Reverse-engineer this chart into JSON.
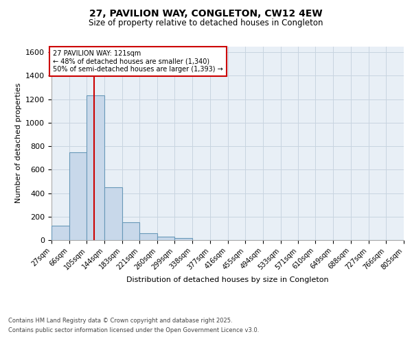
{
  "title_line1": "27, PAVILION WAY, CONGLETON, CW12 4EW",
  "title_line2": "Size of property relative to detached houses in Congleton",
  "xlabel": "Distribution of detached houses by size in Congleton",
  "ylabel": "Number of detached properties",
  "bar_edges": [
    27,
    66,
    105,
    144,
    183,
    221,
    260,
    299,
    338,
    377,
    416,
    455,
    494,
    533,
    571,
    610,
    649,
    688,
    727,
    766,
    805
  ],
  "bar_heights": [
    120,
    750,
    1230,
    450,
    150,
    60,
    30,
    15,
    0,
    0,
    0,
    0,
    0,
    0,
    0,
    0,
    0,
    0,
    0,
    0
  ],
  "bar_color": "#c8d8ea",
  "bar_edgecolor": "#6898b8",
  "ylim": [
    0,
    1650
  ],
  "yticks": [
    0,
    200,
    400,
    600,
    800,
    1000,
    1200,
    1400,
    1600
  ],
  "red_line_x": 121,
  "annotation_title": "27 PAVILION WAY: 121sqm",
  "annotation_line1": "← 48% of detached houses are smaller (1,340)",
  "annotation_line2": "50% of semi-detached houses are larger (1,393) →",
  "annotation_box_color": "#ffffff",
  "annotation_box_edgecolor": "#cc0000",
  "red_line_color": "#cc0000",
  "grid_color": "#c8d4e0",
  "background_color": "#e8eff6",
  "footer_line1": "Contains HM Land Registry data © Crown copyright and database right 2025.",
  "footer_line2": "Contains public sector information licensed under the Open Government Licence v3.0."
}
